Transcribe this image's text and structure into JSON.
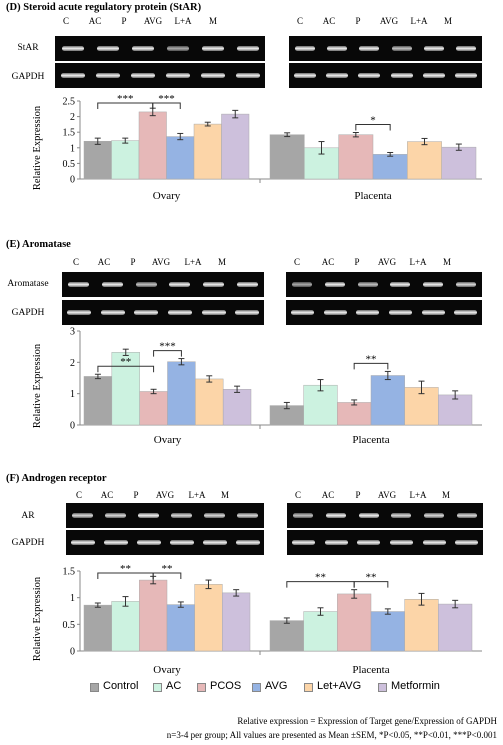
{
  "colors": {
    "control": "#a6a6a6",
    "ac": "#ccf2e0",
    "pcos": "#e6b8b8",
    "avg": "#95b3e3",
    "letavg": "#fcd5a8",
    "metformin": "#cdc0dc"
  },
  "lane_labels": [
    "C",
    "AC",
    "P",
    "AVG",
    "L+A",
    "M"
  ],
  "legend": [
    "Control",
    "AC",
    "PCOS",
    "AVG",
    "Let+AVG",
    "Metformin"
  ],
  "panels": [
    {
      "title": "(D) Steroid acute regulatory protein (StAR)",
      "gene_label": "StAR",
      "loading_label": "GAPDH"
    },
    {
      "title": "(E) Aromatase",
      "gene_label": "Aromatase",
      "loading_label": "GAPDH"
    },
    {
      "title": "(F) Androgen receptor",
      "gene_label": "AR",
      "loading_label": "GAPDH"
    }
  ],
  "chart_data": [
    {
      "type": "bar",
      "ylabel": "Relative Expression",
      "ylim": [
        0,
        2.5
      ],
      "yticks": [
        "0",
        "0.5",
        "1",
        "1.5",
        "2",
        "2.5"
      ],
      "groups": [
        "Ovary",
        "Placenta"
      ],
      "series_order": [
        "Control",
        "AC",
        "PCOS",
        "AVG",
        "Let+AVG",
        "Metformin"
      ],
      "values": {
        "Ovary": [
          1.21,
          1.23,
          2.15,
          1.36,
          1.76,
          2.08
        ],
        "Placenta": [
          1.42,
          1.0,
          1.42,
          0.79,
          1.2,
          1.02
        ]
      },
      "errors": {
        "Ovary": [
          0.1,
          0.08,
          0.12,
          0.1,
          0.06,
          0.12
        ],
        "Placenta": [
          0.06,
          0.2,
          0.07,
          0.06,
          0.1,
          0.1
        ]
      },
      "significance": [
        {
          "group": "Ovary",
          "from": 0,
          "to": 2,
          "label": "***"
        },
        {
          "group": "Ovary",
          "from": 2,
          "to": 3,
          "label": "***"
        },
        {
          "group": "Placenta",
          "from": 2,
          "to": 3,
          "label": "*"
        }
      ]
    },
    {
      "type": "bar",
      "ylabel": "Relative Expression",
      "ylim": [
        0,
        3
      ],
      "yticks": [
        "0",
        "1",
        "2",
        "3"
      ],
      "groups": [
        "Ovary",
        "Placenta"
      ],
      "series_order": [
        "Control",
        "AC",
        "PCOS",
        "AVG",
        "Let+AVG",
        "Metformin"
      ],
      "values": {
        "Ovary": [
          1.55,
          2.32,
          1.07,
          2.02,
          1.47,
          1.14
        ],
        "Placenta": [
          0.62,
          1.27,
          0.72,
          1.58,
          1.2,
          0.96
        ]
      },
      "errors": {
        "Ovary": [
          0.07,
          0.1,
          0.07,
          0.1,
          0.1,
          0.1
        ],
        "Placenta": [
          0.1,
          0.18,
          0.08,
          0.13,
          0.2,
          0.13
        ]
      },
      "significance": [
        {
          "group": "Ovary",
          "from": 0,
          "to": 2,
          "label": "**"
        },
        {
          "group": "Ovary",
          "from": 2,
          "to": 3,
          "label": "***"
        },
        {
          "group": "Placenta",
          "from": 2,
          "to": 3,
          "label": "**"
        }
      ]
    },
    {
      "type": "bar",
      "ylabel": "Relative Expression",
      "ylim": [
        0,
        1.5
      ],
      "yticks": [
        "0",
        "0.5",
        "1",
        "1.5"
      ],
      "groups": [
        "Ovary",
        "Placenta"
      ],
      "series_order": [
        "Control",
        "AC",
        "PCOS",
        "AVG",
        "Let+AVG",
        "Metformin"
      ],
      "values": {
        "Ovary": [
          0.86,
          0.93,
          1.33,
          0.87,
          1.25,
          1.09
        ],
        "Placenta": [
          0.57,
          0.74,
          1.07,
          0.74,
          0.97,
          0.88
        ]
      },
      "errors": {
        "Ovary": [
          0.04,
          0.09,
          0.07,
          0.05,
          0.08,
          0.06
        ],
        "Placenta": [
          0.05,
          0.07,
          0.08,
          0.05,
          0.11,
          0.07
        ]
      },
      "significance": [
        {
          "group": "Ovary",
          "from": 0,
          "to": 2,
          "label": "**"
        },
        {
          "group": "Ovary",
          "from": 2,
          "to": 3,
          "label": "**"
        },
        {
          "group": "Placenta",
          "from": 0,
          "to": 2,
          "label": "**"
        },
        {
          "group": "Placenta",
          "from": 2,
          "to": 3,
          "label": "**"
        }
      ]
    }
  ],
  "footnote": {
    "line1": "Relative expression = Expression of Target gene/Expression of GAPDH",
    "line2": "n=3-4 per group; All values are presented as Mean ±SEM, *P<0.05, **P<0.01, ***P<0.001"
  }
}
